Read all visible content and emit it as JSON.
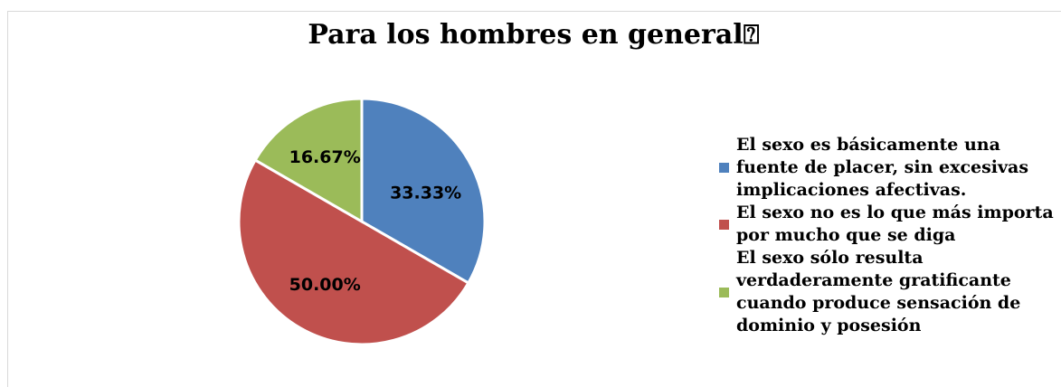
{
  "chart_data": {
    "type": "pie",
    "title": "Para los hombres en general⍰",
    "categories": [
      "El sexo es básicamente una fuente de placer, sin excesivas implicaciones afectivas.",
      "El sexo no es lo que más importa por mucho que se diga",
      "El sexo sólo resulta verdaderamente gratificante cuando produce sensación de dominio y posesión"
    ],
    "values": [
      33.33,
      50.0,
      16.67
    ],
    "value_labels": [
      "33.33%",
      "50.00%",
      "16.67%"
    ],
    "colors": [
      "#4f81bd",
      "#c0504d",
      "#9bbb59"
    ],
    "legend": "right"
  }
}
